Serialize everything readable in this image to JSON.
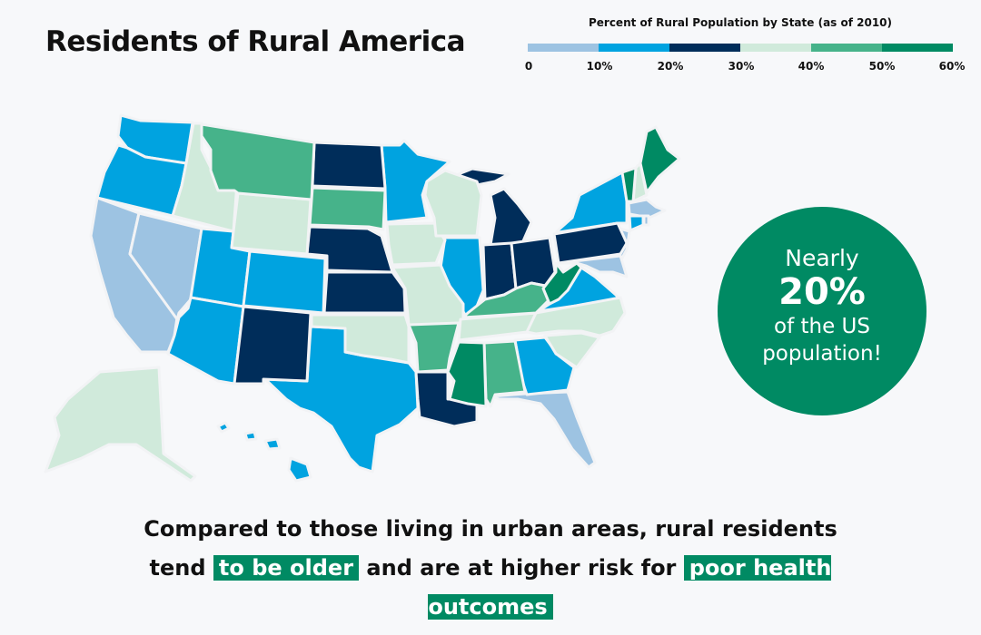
{
  "title": "Residents of Rural America",
  "legend": {
    "title": "Percent of Rural Population by State (as of 2010)",
    "ticks": [
      "0",
      "10%",
      "20%",
      "30%",
      "40%",
      "50%",
      "60%"
    ],
    "colors": [
      "#9dc3e2",
      "#00a3e0",
      "#002d5a",
      "#d0eadb",
      "#46b38a",
      "#008a63"
    ]
  },
  "map": {
    "border_color": "#f2f3f5",
    "state_bins": {
      "CA": 0,
      "NV": 0,
      "FL": 0,
      "NJ": 0,
      "MA": 0,
      "RI": 0,
      "MD": 0,
      "WA": 1,
      "OR": 1,
      "UT": 1,
      "CO": 1,
      "AZ": 1,
      "TX": 1,
      "MN": 1,
      "IL": 1,
      "NY": 1,
      "CT": 1,
      "VA": 1,
      "GA": 1,
      "HI": 1,
      "ND": 2,
      "NE": 2,
      "KS": 2,
      "NM": 2,
      "LA": 2,
      "MI": 2,
      "IN": 2,
      "OH": 2,
      "PA": 2,
      "ID": 3,
      "WY": 3,
      "OK": 3,
      "IA": 3,
      "MO": 3,
      "WI": 3,
      "TN": 3,
      "NC": 3,
      "SC": 3,
      "NH": 3,
      "AK": 3,
      "MT": 4,
      "SD": 4,
      "AR": 4,
      "KY": 4,
      "AL": 4,
      "VT": 5,
      "ME": 5,
      "MS": 5,
      "WV": 5
    }
  },
  "callout": {
    "line1": "Nearly",
    "value": "20%",
    "line2": "of the US",
    "line3": "population!"
  },
  "footer": {
    "part1": "Compared to those living in urban areas, rural residents tend",
    "highlight1": "to be older",
    "part2": "and are at higher risk for",
    "highlight2": "poor health outcomes"
  }
}
